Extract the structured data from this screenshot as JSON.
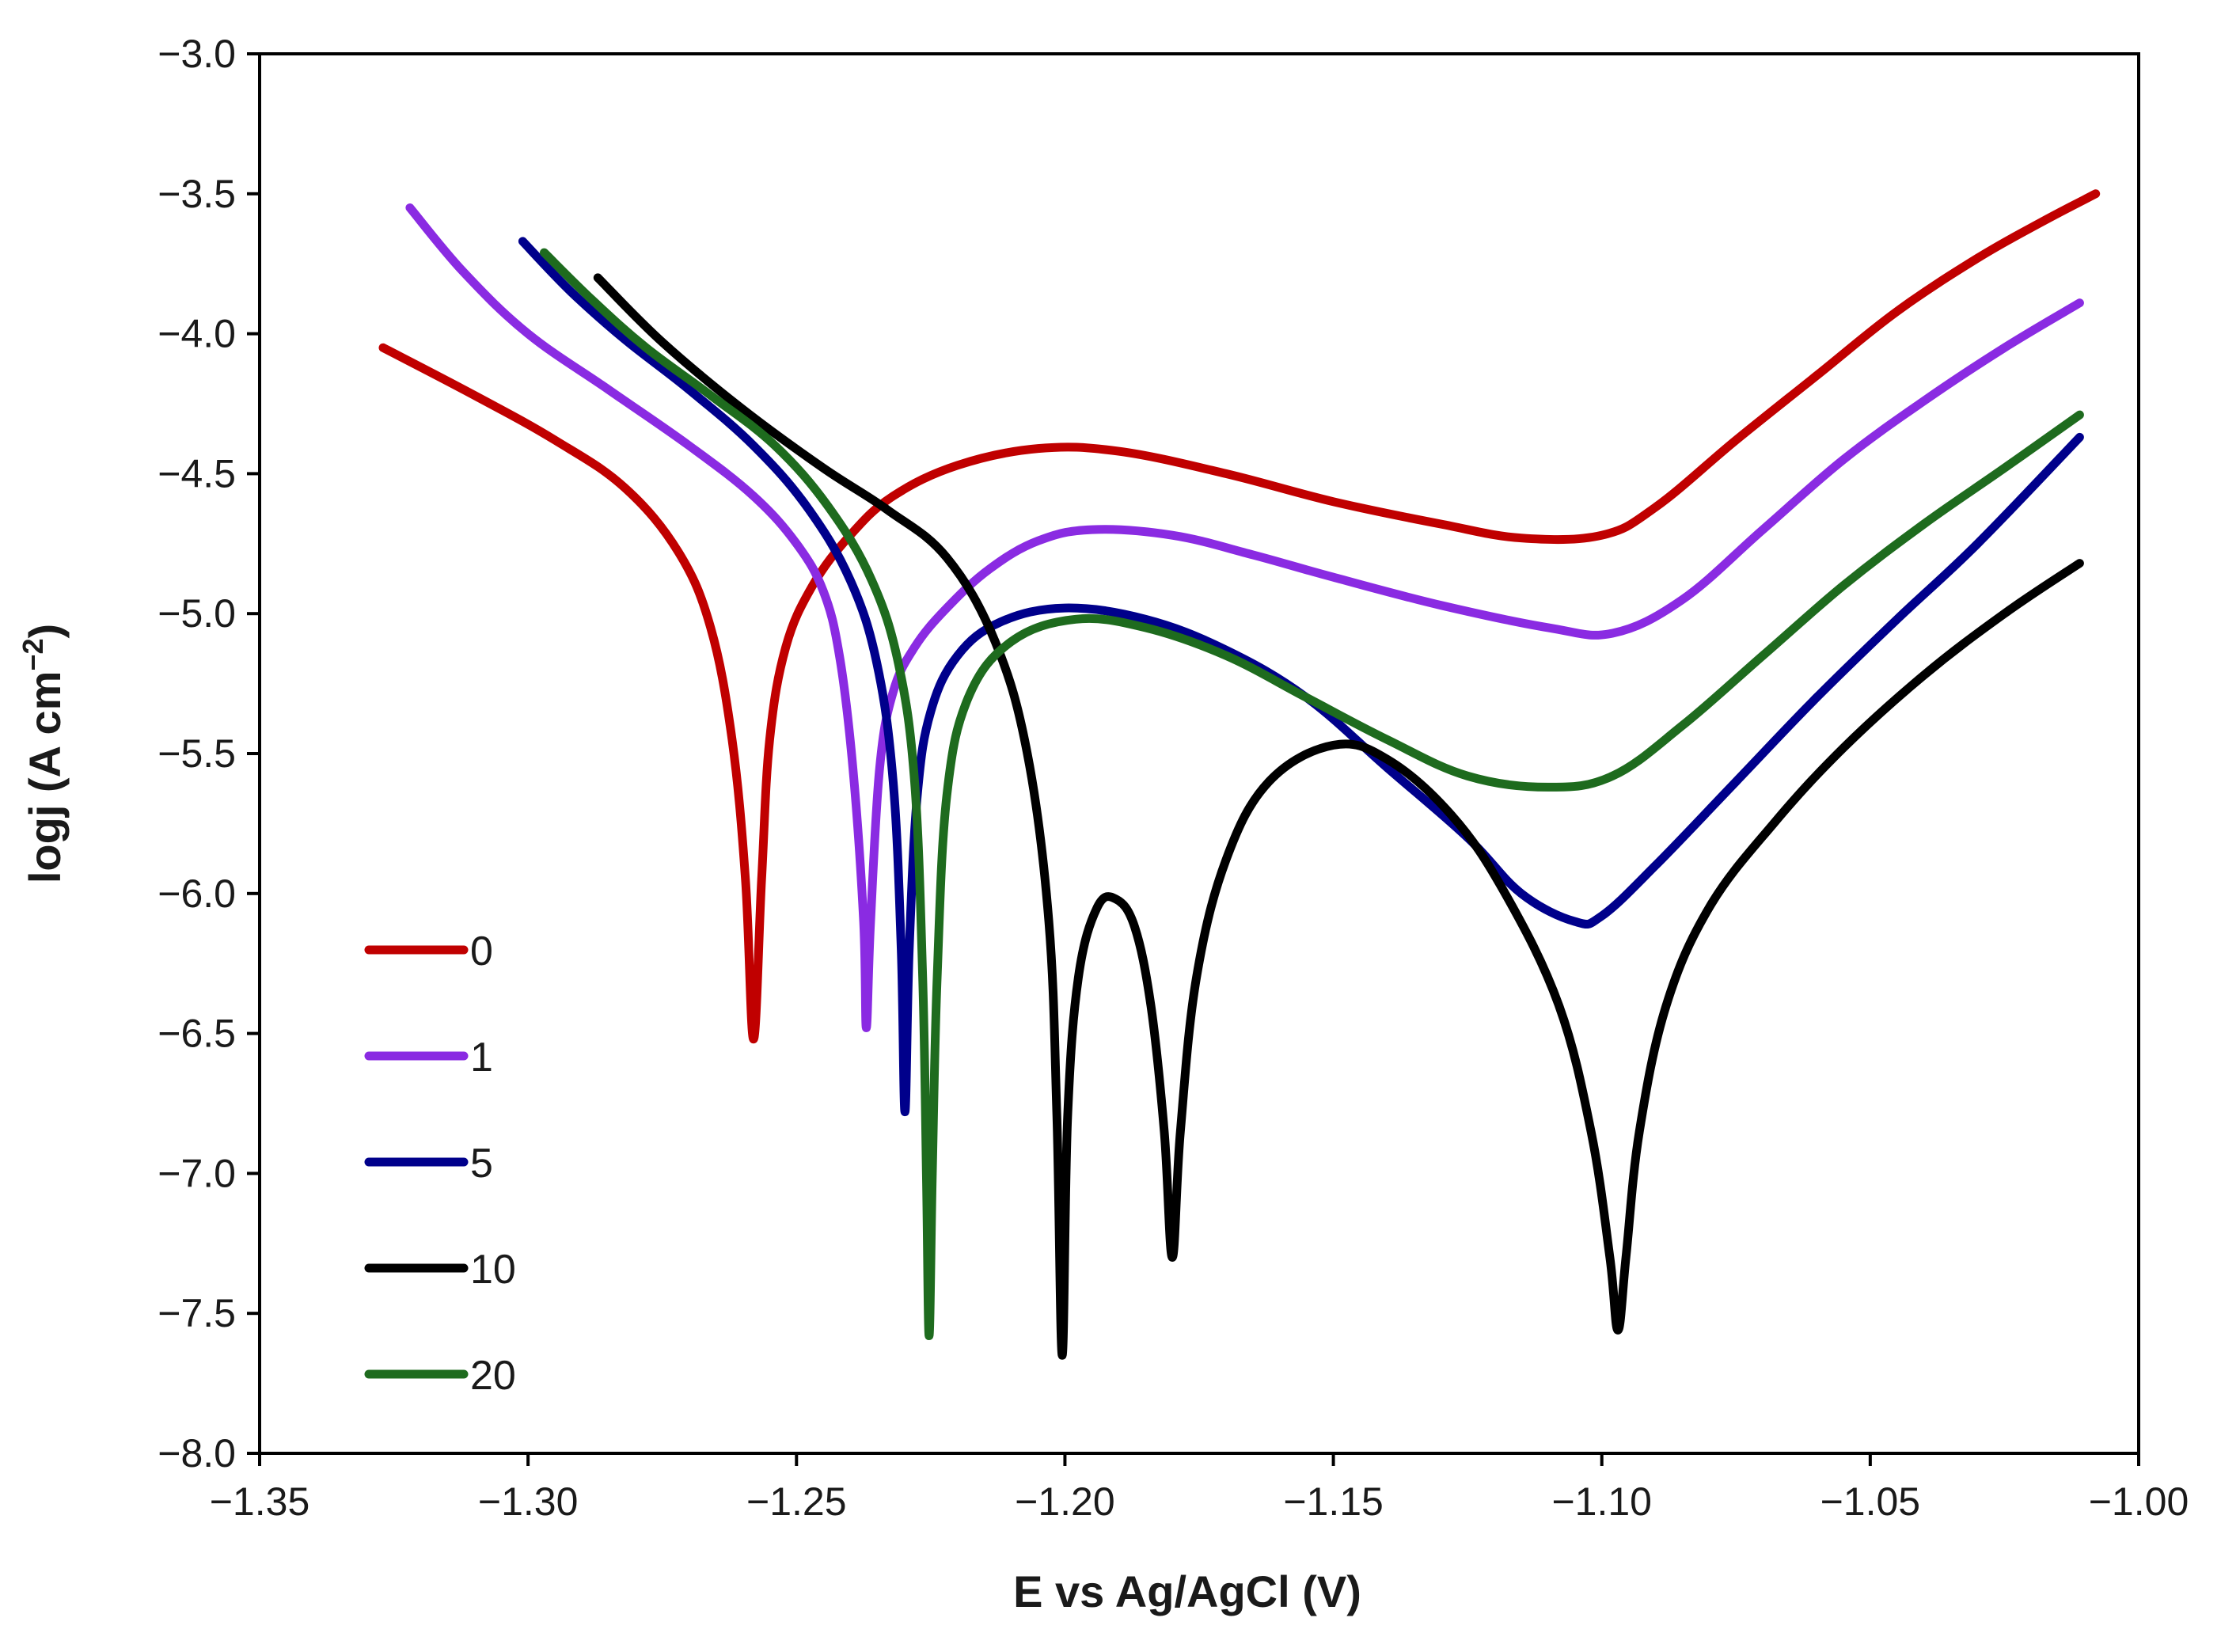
{
  "chart_data": {
    "type": "line",
    "title": "",
    "xlabel": "E vs Ag/AgCl  (V)",
    "ylabel_main": "logj (A cm",
    "ylabel_sup": "−2",
    "ylabel_close": ")",
    "xlim": [
      -1.35,
      -1.0
    ],
    "ylim": [
      -8.0,
      -3.0
    ],
    "x_ticks": [
      -1.35,
      -1.3,
      -1.25,
      -1.2,
      -1.15,
      -1.1,
      -1.05,
      -1.0
    ],
    "x_tick_labels": [
      "−1.35",
      "−1.30",
      "−1.25",
      "−1.20",
      "−1.15",
      "−1.10",
      "−1.05",
      "−1.00"
    ],
    "y_ticks": [
      -3.0,
      -3.5,
      -4.0,
      -4.5,
      -5.0,
      -5.5,
      -6.0,
      -6.5,
      -7.0,
      -7.5,
      -8.0
    ],
    "y_tick_labels": [
      "−3.0",
      "−3.5",
      "−4.0",
      "−4.5",
      "−5.0",
      "−5.5",
      "−6.0",
      "−6.5",
      "−7.0",
      "−7.5",
      "−8.0"
    ],
    "grid": false,
    "legend_position": "bottom-left",
    "series": [
      {
        "name": "0",
        "color": "#c00000",
        "points": [
          [
            -1.327,
            -4.05
          ],
          [
            -1.31,
            -4.22
          ],
          [
            -1.295,
            -4.38
          ],
          [
            -1.282,
            -4.55
          ],
          [
            -1.272,
            -4.78
          ],
          [
            -1.266,
            -5.05
          ],
          [
            -1.262,
            -5.45
          ],
          [
            -1.2595,
            -5.95
          ],
          [
            -1.258,
            -6.52
          ],
          [
            -1.2565,
            -5.95
          ],
          [
            -1.255,
            -5.45
          ],
          [
            -1.252,
            -5.12
          ],
          [
            -1.247,
            -4.9
          ],
          [
            -1.24,
            -4.72
          ],
          [
            -1.232,
            -4.58
          ],
          [
            -1.22,
            -4.47
          ],
          [
            -1.205,
            -4.41
          ],
          [
            -1.19,
            -4.42
          ],
          [
            -1.17,
            -4.5
          ],
          [
            -1.15,
            -4.6
          ],
          [
            -1.13,
            -4.68
          ],
          [
            -1.115,
            -4.73
          ],
          [
            -1.1,
            -4.72
          ],
          [
            -1.09,
            -4.62
          ],
          [
            -1.075,
            -4.38
          ],
          [
            -1.06,
            -4.15
          ],
          [
            -1.045,
            -3.92
          ],
          [
            -1.03,
            -3.73
          ],
          [
            -1.018,
            -3.6
          ],
          [
            -1.008,
            -3.5
          ]
        ]
      },
      {
        "name": "1",
        "color": "#8a2be2",
        "points": [
          [
            -1.322,
            -3.55
          ],
          [
            -1.312,
            -3.78
          ],
          [
            -1.3,
            -4.0
          ],
          [
            -1.285,
            -4.2
          ],
          [
            -1.27,
            -4.4
          ],
          [
            -1.258,
            -4.58
          ],
          [
            -1.25,
            -4.75
          ],
          [
            -1.245,
            -4.92
          ],
          [
            -1.242,
            -5.15
          ],
          [
            -1.2395,
            -5.55
          ],
          [
            -1.2375,
            -6.1
          ],
          [
            -1.237,
            -6.48
          ],
          [
            -1.2362,
            -6.1
          ],
          [
            -1.2345,
            -5.55
          ],
          [
            -1.232,
            -5.28
          ],
          [
            -1.228,
            -5.12
          ],
          [
            -1.222,
            -4.98
          ],
          [
            -1.214,
            -4.84
          ],
          [
            -1.205,
            -4.74
          ],
          [
            -1.195,
            -4.7
          ],
          [
            -1.18,
            -4.72
          ],
          [
            -1.165,
            -4.79
          ],
          [
            -1.15,
            -4.87
          ],
          [
            -1.13,
            -4.97
          ],
          [
            -1.11,
            -5.05
          ],
          [
            -1.098,
            -5.07
          ],
          [
            -1.085,
            -4.95
          ],
          [
            -1.07,
            -4.7
          ],
          [
            -1.055,
            -4.45
          ],
          [
            -1.04,
            -4.24
          ],
          [
            -1.025,
            -4.05
          ],
          [
            -1.011,
            -3.89
          ]
        ]
      },
      {
        "name": "5",
        "color": "#00008b",
        "points": [
          [
            -1.301,
            -3.67
          ],
          [
            -1.292,
            -3.85
          ],
          [
            -1.282,
            -4.02
          ],
          [
            -1.27,
            -4.2
          ],
          [
            -1.258,
            -4.4
          ],
          [
            -1.248,
            -4.62
          ],
          [
            -1.24,
            -4.88
          ],
          [
            -1.235,
            -5.18
          ],
          [
            -1.232,
            -5.6
          ],
          [
            -1.2305,
            -6.2
          ],
          [
            -1.2298,
            -6.78
          ],
          [
            -1.229,
            -6.2
          ],
          [
            -1.2275,
            -5.65
          ],
          [
            -1.225,
            -5.35
          ],
          [
            -1.22,
            -5.15
          ],
          [
            -1.212,
            -5.03
          ],
          [
            -1.2,
            -4.98
          ],
          [
            -1.185,
            -5.02
          ],
          [
            -1.17,
            -5.13
          ],
          [
            -1.155,
            -5.3
          ],
          [
            -1.14,
            -5.55
          ],
          [
            -1.125,
            -5.8
          ],
          [
            -1.115,
            -6.0
          ],
          [
            -1.105,
            -6.1
          ],
          [
            -1.1,
            -6.08
          ],
          [
            -1.09,
            -5.9
          ],
          [
            -1.075,
            -5.6
          ],
          [
            -1.06,
            -5.3
          ],
          [
            -1.045,
            -5.02
          ],
          [
            -1.03,
            -4.75
          ],
          [
            -1.011,
            -4.37
          ]
        ]
      },
      {
        "name": "10",
        "color": "#000000",
        "points": [
          [
            -1.287,
            -3.8
          ],
          [
            -1.275,
            -4.03
          ],
          [
            -1.26,
            -4.27
          ],
          [
            -1.245,
            -4.48
          ],
          [
            -1.233,
            -4.63
          ],
          [
            -1.222,
            -4.8
          ],
          [
            -1.213,
            -5.1
          ],
          [
            -1.207,
            -5.5
          ],
          [
            -1.203,
            -6.1
          ],
          [
            -1.2015,
            -6.8
          ],
          [
            -1.2005,
            -7.65
          ],
          [
            -1.1995,
            -6.8
          ],
          [
            -1.1975,
            -6.3
          ],
          [
            -1.194,
            -6.05
          ],
          [
            -1.1905,
            -6.02
          ],
          [
            -1.187,
            -6.12
          ],
          [
            -1.184,
            -6.4
          ],
          [
            -1.1815,
            -6.85
          ],
          [
            -1.18,
            -7.3
          ],
          [
            -1.1785,
            -6.85
          ],
          [
            -1.1755,
            -6.3
          ],
          [
            -1.17,
            -5.88
          ],
          [
            -1.162,
            -5.6
          ],
          [
            -1.15,
            -5.47
          ],
          [
            -1.14,
            -5.52
          ],
          [
            -1.128,
            -5.72
          ],
          [
            -1.118,
            -6.0
          ],
          [
            -1.108,
            -6.4
          ],
          [
            -1.102,
            -6.85
          ],
          [
            -1.0985,
            -7.3
          ],
          [
            -1.097,
            -7.56
          ],
          [
            -1.0955,
            -7.3
          ],
          [
            -1.093,
            -6.85
          ],
          [
            -1.088,
            -6.4
          ],
          [
            -1.08,
            -6.05
          ],
          [
            -1.068,
            -5.75
          ],
          [
            -1.055,
            -5.48
          ],
          [
            -1.04,
            -5.22
          ],
          [
            -1.025,
            -5.0
          ],
          [
            -1.011,
            -4.82
          ]
        ]
      },
      {
        "name": "20",
        "color": "#1e6b1e",
        "points": [
          [
            -1.297,
            -3.71
          ],
          [
            -1.288,
            -3.88
          ],
          [
            -1.278,
            -4.05
          ],
          [
            -1.266,
            -4.22
          ],
          [
            -1.254,
            -4.4
          ],
          [
            -1.244,
            -4.62
          ],
          [
            -1.236,
            -4.88
          ],
          [
            -1.231,
            -5.18
          ],
          [
            -1.228,
            -5.6
          ],
          [
            -1.2265,
            -6.3
          ],
          [
            -1.2258,
            -7.0
          ],
          [
            -1.2253,
            -7.58
          ],
          [
            -1.2247,
            -7.0
          ],
          [
            -1.2238,
            -6.3
          ],
          [
            -1.222,
            -5.65
          ],
          [
            -1.218,
            -5.3
          ],
          [
            -1.21,
            -5.1
          ],
          [
            -1.198,
            -5.02
          ],
          [
            -1.185,
            -5.05
          ],
          [
            -1.17,
            -5.15
          ],
          [
            -1.155,
            -5.3
          ],
          [
            -1.14,
            -5.45
          ],
          [
            -1.125,
            -5.58
          ],
          [
            -1.11,
            -5.62
          ],
          [
            -1.098,
            -5.58
          ],
          [
            -1.085,
            -5.4
          ],
          [
            -1.07,
            -5.15
          ],
          [
            -1.055,
            -4.9
          ],
          [
            -1.04,
            -4.68
          ],
          [
            -1.025,
            -4.48
          ],
          [
            -1.011,
            -4.29
          ]
        ]
      }
    ]
  }
}
